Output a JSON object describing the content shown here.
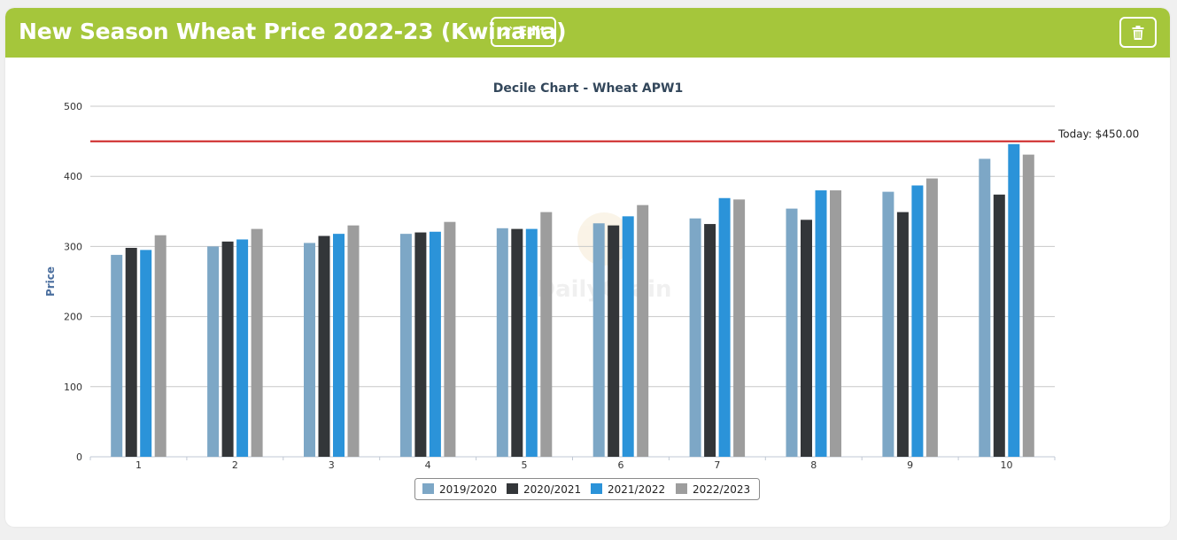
{
  "header": {
    "title": "New Season Wheat Price 2022-23 (Kwinana)",
    "edit_label": "Edit",
    "edit_icon": "pencil-icon",
    "delete_icon": "trash-icon",
    "bg_color": "#a5c63b"
  },
  "chart_data": {
    "type": "bar",
    "title": "Decile Chart - Wheat APW1",
    "xlabel": "",
    "ylabel": "Price",
    "ylim": [
      0,
      500
    ],
    "yticks": [
      0,
      100,
      200,
      300,
      400,
      500
    ],
    "grid": true,
    "legend_position": "bottom",
    "categories": [
      "1",
      "2",
      "3",
      "4",
      "5",
      "6",
      "7",
      "8",
      "9",
      "10"
    ],
    "series": [
      {
        "name": "2019/2020",
        "color": "#7da7c6",
        "values": [
          288,
          300,
          305,
          318,
          326,
          333,
          340,
          354,
          378,
          425
        ]
      },
      {
        "name": "2020/2021",
        "color": "#333639",
        "values": [
          298,
          307,
          315,
          320,
          325,
          330,
          332,
          338,
          349,
          374
        ]
      },
      {
        "name": "2021/2022",
        "color": "#2b93d9",
        "values": [
          295,
          310,
          318,
          321,
          325,
          343,
          369,
          380,
          387,
          446
        ]
      },
      {
        "name": "2022/2023",
        "color": "#9d9d9d",
        "values": [
          316,
          325,
          330,
          335,
          349,
          359,
          367,
          380,
          397,
          431
        ]
      }
    ],
    "reference_line": {
      "value": 450,
      "label": "Today: $450.00",
      "color": "#cc1f1f"
    }
  }
}
